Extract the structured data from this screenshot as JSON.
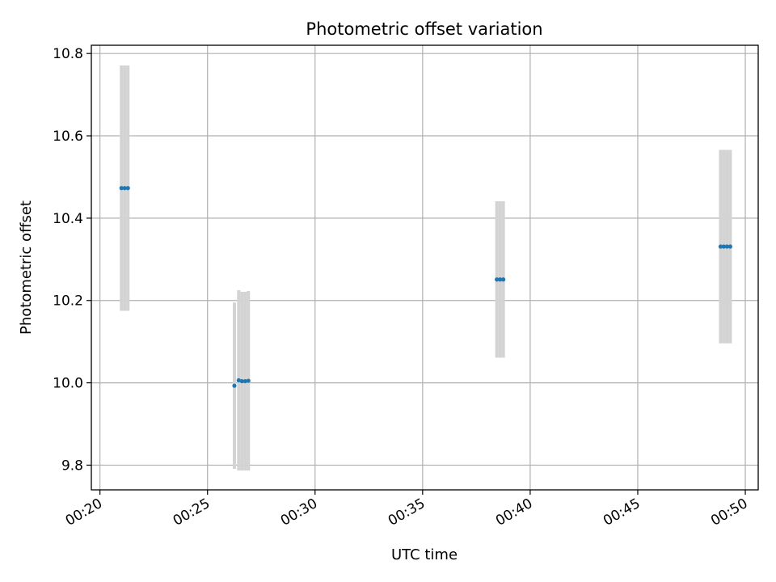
{
  "chart_data": {
    "type": "scatter",
    "title": "Photometric offset variation",
    "xlabel": "UTC time",
    "ylabel": "Photometric offset",
    "x_unit": "minutes after 00:00 UTC",
    "xlim": [
      19.6,
      50.6
    ],
    "ylim": [
      9.74,
      10.82
    ],
    "xticks": [
      20,
      25,
      30,
      35,
      40,
      45,
      50
    ],
    "xtick_labels": [
      "00:20",
      "00:25",
      "00:30",
      "00:35",
      "00:40",
      "00:45",
      "00:50"
    ],
    "yticks": [
      9.8,
      10.0,
      10.2,
      10.4,
      10.6,
      10.8
    ],
    "ytick_labels": [
      "9.8",
      "10.0",
      "10.2",
      "10.4",
      "10.6",
      "10.8"
    ],
    "grid": true,
    "point_color": "#1f77b4",
    "errorbar_color": "#d3d3d3",
    "points": [
      {
        "x": 21.0,
        "y": 10.473,
        "err": 0.298
      },
      {
        "x": 21.15,
        "y": 10.473,
        "err": 0.298
      },
      {
        "x": 21.3,
        "y": 10.473,
        "err": 0.298
      },
      {
        "x": 26.25,
        "y": 9.993,
        "err": 0.202
      },
      {
        "x": 26.45,
        "y": 10.006,
        "err": 0.219
      },
      {
        "x": 26.6,
        "y": 10.004,
        "err": 0.217
      },
      {
        "x": 26.75,
        "y": 10.004,
        "err": 0.217
      },
      {
        "x": 26.9,
        "y": 10.005,
        "err": 0.218
      },
      {
        "x": 38.45,
        "y": 10.251,
        "err": 0.19
      },
      {
        "x": 38.6,
        "y": 10.251,
        "err": 0.19
      },
      {
        "x": 38.75,
        "y": 10.251,
        "err": 0.19
      },
      {
        "x": 48.85,
        "y": 10.331,
        "err": 0.235
      },
      {
        "x": 49.0,
        "y": 10.331,
        "err": 0.235
      },
      {
        "x": 49.15,
        "y": 10.331,
        "err": 0.235
      },
      {
        "x": 49.3,
        "y": 10.331,
        "err": 0.235
      }
    ]
  }
}
